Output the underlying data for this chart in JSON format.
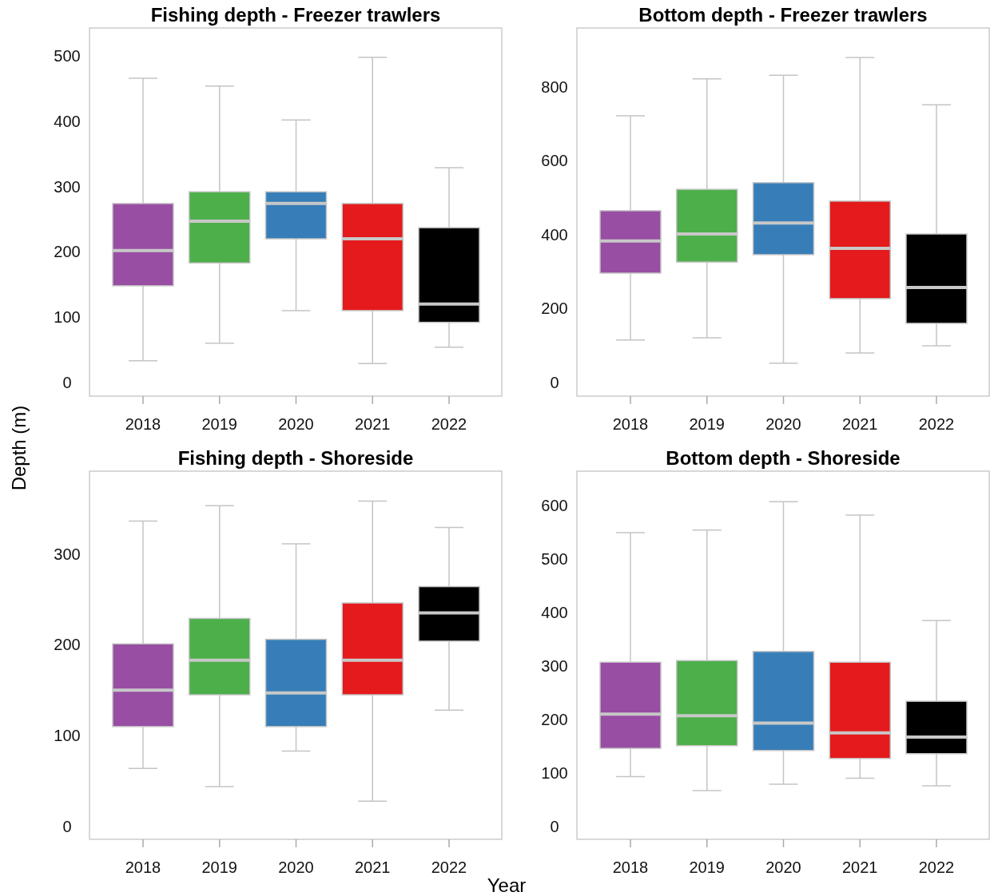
{
  "chart_data": [
    {
      "type": "box",
      "title": "Fishing depth - Freezer trawlers",
      "ylabel": "Depth (m)",
      "categories": [
        "2018",
        "2019",
        "2020",
        "2021",
        "2022"
      ],
      "colors": [
        "#984ea3",
        "#4daf4a",
        "#377eb8",
        "#e41a1c",
        "#000000"
      ],
      "ylim": [
        -21,
        543
      ],
      "yticks": [
        0,
        100,
        200,
        300,
        400,
        500
      ],
      "grid": false,
      "boxes": [
        {
          "low": 33,
          "q1": 148,
          "median": 202,
          "q3": 274,
          "high": 466
        },
        {
          "low": 60,
          "q1": 183,
          "median": 247,
          "q3": 292,
          "high": 454
        },
        {
          "low": 110,
          "q1": 220,
          "median": 274,
          "q3": 292,
          "high": 402
        },
        {
          "low": 29,
          "q1": 110,
          "median": 220,
          "q3": 274,
          "high": 498
        },
        {
          "low": 54,
          "q1": 92,
          "median": 120,
          "q3": 237,
          "high": 329
        }
      ]
    },
    {
      "type": "box",
      "title": "Bottom depth - Freezer trawlers",
      "categories": [
        "2018",
        "2019",
        "2020",
        "2021",
        "2022"
      ],
      "colors": [
        "#984ea3",
        "#4daf4a",
        "#377eb8",
        "#e41a1c",
        "#000000"
      ],
      "ylim": [
        -37,
        960
      ],
      "yticks": [
        0,
        200,
        400,
        600,
        800
      ],
      "grid": false,
      "boxes": [
        {
          "low": 115,
          "q1": 296,
          "median": 383,
          "q3": 465,
          "high": 722
        },
        {
          "low": 121,
          "q1": 326,
          "median": 402,
          "q3": 523,
          "high": 822
        },
        {
          "low": 52,
          "q1": 346,
          "median": 432,
          "q3": 541,
          "high": 832
        },
        {
          "low": 80,
          "q1": 227,
          "median": 363,
          "q3": 491,
          "high": 880
        },
        {
          "low": 99,
          "q1": 160,
          "median": 257,
          "q3": 402,
          "high": 752
        }
      ]
    },
    {
      "type": "box",
      "title": "Fishing depth - Shoreside",
      "categories": [
        "2018",
        "2019",
        "2020",
        "2021",
        "2022"
      ],
      "colors": [
        "#984ea3",
        "#4daf4a",
        "#377eb8",
        "#e41a1c",
        "#000000"
      ],
      "ylim": [
        -14,
        391
      ],
      "yticks": [
        0,
        100,
        200,
        300
      ],
      "grid": false,
      "boxes": [
        {
          "low": 64,
          "q1": 110,
          "median": 150,
          "q3": 201,
          "high": 336
        },
        {
          "low": 44,
          "q1": 145,
          "median": 183,
          "q3": 229,
          "high": 353
        },
        {
          "low": 83,
          "q1": 110,
          "median": 147,
          "q3": 206,
          "high": 311
        },
        {
          "low": 28,
          "q1": 145,
          "median": 183,
          "q3": 246,
          "high": 358
        },
        {
          "low": 128,
          "q1": 204,
          "median": 235,
          "q3": 264,
          "high": 329
        }
      ]
    },
    {
      "type": "box",
      "title": "Bottom depth - Shoreside",
      "xlabel": "Year",
      "categories": [
        "2018",
        "2019",
        "2020",
        "2021",
        "2022"
      ],
      "colors": [
        "#984ea3",
        "#4daf4a",
        "#377eb8",
        "#e41a1c",
        "#000000"
      ],
      "ylim": [
        -24,
        664
      ],
      "yticks": [
        0,
        100,
        200,
        300,
        400,
        500,
        600
      ],
      "grid": false,
      "boxes": [
        {
          "low": 93,
          "q1": 146,
          "median": 210,
          "q3": 307,
          "high": 549
        },
        {
          "low": 67,
          "q1": 151,
          "median": 207,
          "q3": 310,
          "high": 554
        },
        {
          "low": 79,
          "q1": 142,
          "median": 193,
          "q3": 327,
          "high": 607
        },
        {
          "low": 90,
          "q1": 127,
          "median": 175,
          "q3": 307,
          "high": 582
        },
        {
          "low": 76,
          "q1": 136,
          "median": 167,
          "q3": 234,
          "high": 385
        }
      ]
    }
  ]
}
